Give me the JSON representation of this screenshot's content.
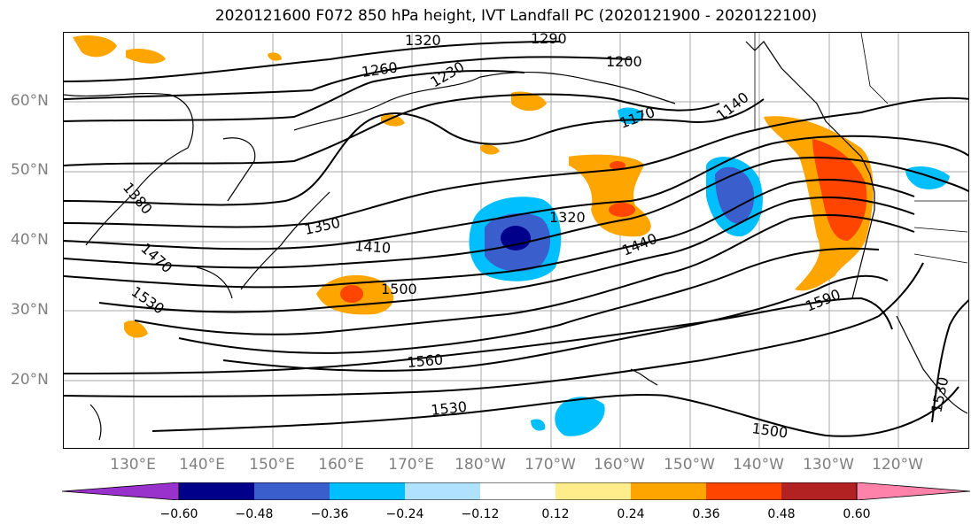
{
  "title": "2020121600 F072 850 hPa height, IVT Landfall PC (2020121900 - 2020122100)",
  "lat_labels": [
    "60°N",
    "50°N",
    "40°N",
    "30°N",
    "20°N"
  ],
  "lon_labels": [
    "130°E",
    "140°E",
    "150°E",
    "160°E",
    "170°E",
    "180°W",
    "170°W",
    "160°W",
    "150°W",
    "140°W",
    "130°W",
    "120°W"
  ],
  "colorbar": {
    "ticks": [
      "−0.60",
      "−0.48",
      "−0.36",
      "−0.24",
      "−0.12",
      "0.12",
      "0.24",
      "0.36",
      "0.48",
      "0.60"
    ],
    "colors": [
      "#9932cc",
      "#00008b",
      "#3a5fcd",
      "#00bfff",
      "#b0e2ff",
      "#ffffff",
      "#ffec8b",
      "#ffa500",
      "#ff4500",
      "#b22222",
      "#ff82ab"
    ]
  },
  "contour_labels": [
    "1320",
    "1290",
    "1260",
    "1230",
    "1200",
    "1140",
    "1170",
    "1380",
    "1350",
    "1320",
    "1410",
    "1440",
    "1470",
    "1500",
    "1530",
    "1590",
    "1560",
    "1530",
    "1500",
    "1530"
  ]
}
